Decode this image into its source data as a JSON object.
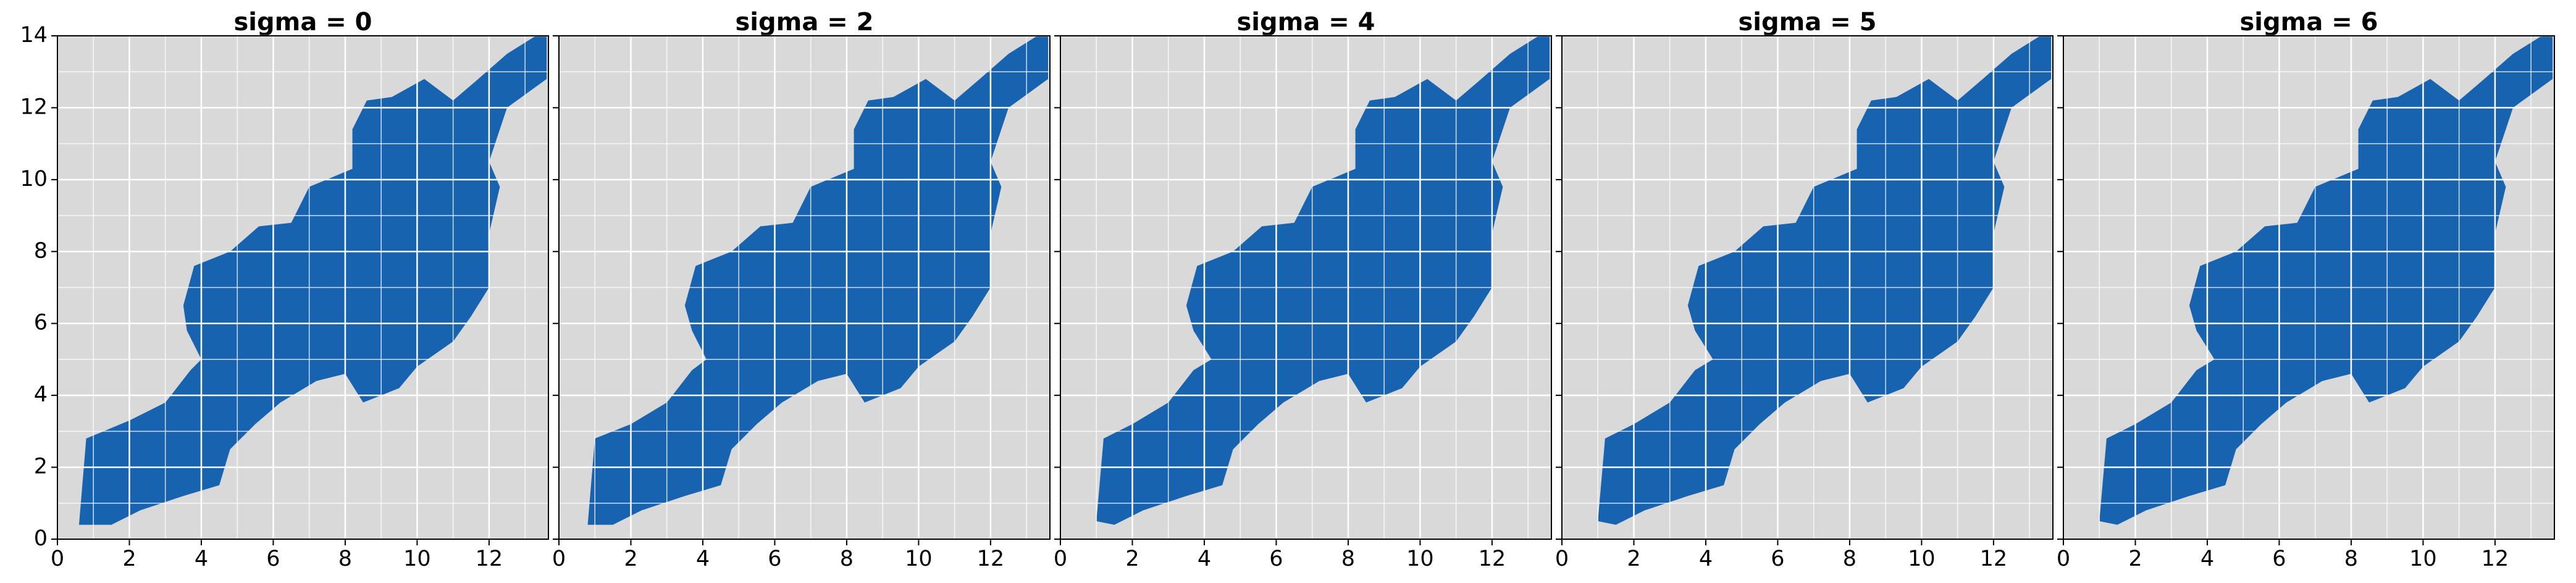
{
  "chart_data": [
    {
      "type": "mask",
      "title": "sigma = 0",
      "color": "#1763b0",
      "background": "#d9d9d9",
      "grid": true,
      "ytick_labels": true,
      "xlim": [
        0,
        13.65
      ],
      "ylim": [
        0,
        14
      ],
      "xticks": [
        0,
        2,
        4,
        6,
        8,
        10,
        12
      ],
      "yticks": [
        0,
        2,
        4,
        6,
        8,
        10,
        12,
        14
      ],
      "xminorticks": [
        1,
        3,
        5,
        7,
        9,
        11,
        13
      ],
      "yminorticks": [
        1,
        3,
        5,
        7,
        9,
        11,
        13
      ],
      "region": {
        "x": [
          0.6,
          0.8,
          2.0,
          3.0,
          3.7,
          4.0,
          3.6,
          3.5,
          3.8,
          4.8,
          5.6,
          6.5,
          7.0,
          8.2,
          8.2,
          8.6,
          9.3,
          10.2,
          11.0,
          11.7,
          12.5,
          13.3,
          13.6,
          13.6,
          12.5,
          12.0,
          12.3,
          12.0,
          12.0,
          11.5,
          11.0,
          10.0,
          9.5,
          8.5,
          8.0,
          7.2,
          6.2,
          5.5,
          4.8,
          4.5,
          3.5,
          2.3,
          1.5
        ],
        "y": [
          0.4,
          2.8,
          3.3,
          3.8,
          4.7,
          5.0,
          5.8,
          6.5,
          7.6,
          8.0,
          8.7,
          8.8,
          9.8,
          10.3,
          11.4,
          12.2,
          12.3,
          12.8,
          12.2,
          12.8,
          13.5,
          14.0,
          14.0,
          12.8,
          12.0,
          10.5,
          9.8,
          8.5,
          7.0,
          6.2,
          5.5,
          4.8,
          4.2,
          3.8,
          4.6,
          4.4,
          3.8,
          3.2,
          2.5,
          1.5,
          1.2,
          0.8,
          0.4
        ]
      }
    },
    {
      "type": "mask",
      "title": "sigma = 2",
      "color": "#1763b0",
      "background": "#d9d9d9",
      "grid": true,
      "ytick_labels": false,
      "xlim": [
        0,
        13.65
      ],
      "ylim": [
        0,
        14
      ],
      "xticks": [
        0,
        2,
        4,
        6,
        8,
        10,
        12
      ],
      "yticks": [
        0,
        2,
        4,
        6,
        8,
        10,
        12,
        14
      ],
      "xminorticks": [
        1,
        3,
        5,
        7,
        9,
        11,
        13
      ],
      "yminorticks": [
        1,
        3,
        5,
        7,
        9,
        11,
        13
      ],
      "region": {
        "x": [
          0.8,
          1.0,
          2.0,
          3.0,
          3.7,
          4.1,
          3.7,
          3.5,
          3.8,
          4.8,
          5.6,
          6.5,
          7.0,
          8.2,
          8.2,
          8.6,
          9.3,
          10.2,
          11.0,
          11.7,
          12.5,
          13.3,
          13.6,
          13.6,
          12.5,
          12.0,
          12.3,
          12.0,
          12.0,
          11.5,
          11.0,
          10.0,
          9.5,
          8.5,
          8.0,
          7.2,
          6.2,
          5.5,
          4.8,
          4.5,
          3.5,
          2.3,
          1.5
        ],
        "y": [
          0.4,
          2.8,
          3.2,
          3.8,
          4.7,
          5.0,
          5.8,
          6.5,
          7.6,
          8.0,
          8.7,
          8.8,
          9.8,
          10.3,
          11.4,
          12.2,
          12.3,
          12.8,
          12.2,
          12.8,
          13.5,
          14.0,
          14.0,
          12.8,
          12.0,
          10.5,
          9.8,
          8.5,
          7.0,
          6.2,
          5.5,
          4.8,
          4.2,
          3.8,
          4.6,
          4.4,
          3.8,
          3.2,
          2.5,
          1.5,
          1.2,
          0.8,
          0.4
        ]
      }
    },
    {
      "type": "mask",
      "title": "sigma = 4",
      "color": "#1763b0",
      "background": "#d9d9d9",
      "grid": true,
      "ytick_labels": false,
      "xlim": [
        0,
        13.65
      ],
      "ylim": [
        0,
        14
      ],
      "xticks": [
        0,
        2,
        4,
        6,
        8,
        10,
        12
      ],
      "yticks": [
        0,
        2,
        4,
        6,
        8,
        10,
        12,
        14
      ],
      "xminorticks": [
        1,
        3,
        5,
        7,
        9,
        11,
        13
      ],
      "yminorticks": [
        1,
        3,
        5,
        7,
        9,
        11,
        13
      ],
      "region": {
        "x": [
          1.0,
          1.2,
          2.0,
          3.0,
          3.7,
          4.2,
          3.7,
          3.5,
          3.8,
          4.8,
          5.6,
          6.5,
          7.0,
          8.2,
          8.2,
          8.6,
          9.3,
          10.2,
          11.0,
          11.7,
          12.5,
          13.3,
          13.6,
          13.6,
          12.5,
          12.0,
          12.3,
          12.0,
          12.0,
          11.5,
          11.0,
          10.0,
          9.5,
          8.5,
          8.0,
          7.2,
          6.2,
          5.5,
          4.8,
          4.5,
          3.5,
          2.3,
          1.5
        ],
        "y": [
          0.5,
          2.8,
          3.2,
          3.8,
          4.7,
          5.0,
          5.8,
          6.5,
          7.6,
          8.0,
          8.7,
          8.8,
          9.8,
          10.3,
          11.4,
          12.2,
          12.3,
          12.8,
          12.2,
          12.8,
          13.5,
          14.0,
          14.0,
          12.8,
          12.0,
          10.5,
          9.8,
          8.5,
          7.0,
          6.2,
          5.5,
          4.8,
          4.2,
          3.8,
          4.6,
          4.4,
          3.8,
          3.2,
          2.5,
          1.5,
          1.2,
          0.8,
          0.4
        ]
      }
    },
    {
      "type": "mask",
      "title": "sigma = 5",
      "color": "#1763b0",
      "background": "#d9d9d9",
      "grid": true,
      "ytick_labels": false,
      "xlim": [
        0,
        13.65
      ],
      "ylim": [
        0,
        14
      ],
      "xticks": [
        0,
        2,
        4,
        6,
        8,
        10,
        12
      ],
      "yticks": [
        0,
        2,
        4,
        6,
        8,
        10,
        12,
        14
      ],
      "xminorticks": [
        1,
        3,
        5,
        7,
        9,
        11,
        13
      ],
      "yminorticks": [
        1,
        3,
        5,
        7,
        9,
        11,
        13
      ],
      "region": {
        "x": [
          1.0,
          1.2,
          2.0,
          3.0,
          3.7,
          4.2,
          3.7,
          3.5,
          3.8,
          4.8,
          5.6,
          6.5,
          7.0,
          8.2,
          8.2,
          8.6,
          9.3,
          10.2,
          11.0,
          11.7,
          12.5,
          13.3,
          13.6,
          13.6,
          12.5,
          12.0,
          12.3,
          12.0,
          12.0,
          11.5,
          11.0,
          10.0,
          9.5,
          8.5,
          8.0,
          7.2,
          6.2,
          5.5,
          4.8,
          4.5,
          3.5,
          2.3,
          1.5
        ],
        "y": [
          0.5,
          2.8,
          3.2,
          3.8,
          4.7,
          5.0,
          5.8,
          6.5,
          7.6,
          8.0,
          8.7,
          8.8,
          9.8,
          10.3,
          11.4,
          12.2,
          12.3,
          12.8,
          12.2,
          12.8,
          13.5,
          14.0,
          14.0,
          12.8,
          12.0,
          10.5,
          9.8,
          8.5,
          7.0,
          6.2,
          5.5,
          4.8,
          4.2,
          3.8,
          4.6,
          4.4,
          3.8,
          3.2,
          2.5,
          1.5,
          1.2,
          0.8,
          0.4
        ]
      }
    },
    {
      "type": "mask",
      "title": "sigma = 6",
      "color": "#1763b0",
      "background": "#d9d9d9",
      "grid": true,
      "ytick_labels": false,
      "xlim": [
        0,
        13.65
      ],
      "ylim": [
        0,
        14
      ],
      "xticks": [
        0,
        2,
        4,
        6,
        8,
        10,
        12
      ],
      "yticks": [
        0,
        2,
        4,
        6,
        8,
        10,
        12,
        14
      ],
      "xminorticks": [
        1,
        3,
        5,
        7,
        9,
        11,
        13
      ],
      "yminorticks": [
        1,
        3,
        5,
        7,
        9,
        11,
        13
      ],
      "region": {
        "x": [
          1.0,
          1.2,
          2.0,
          3.0,
          3.7,
          4.2,
          3.7,
          3.5,
          3.8,
          4.8,
          5.6,
          6.5,
          7.0,
          8.2,
          8.2,
          8.6,
          9.3,
          10.2,
          11.0,
          11.7,
          12.5,
          13.3,
          13.6,
          13.6,
          12.5,
          12.0,
          12.3,
          12.0,
          12.0,
          11.5,
          11.0,
          10.0,
          9.5,
          8.5,
          8.0,
          7.2,
          6.2,
          5.5,
          4.8,
          4.5,
          3.5,
          2.3,
          1.5
        ],
        "y": [
          0.5,
          2.8,
          3.2,
          3.8,
          4.7,
          5.0,
          5.8,
          6.5,
          7.6,
          8.0,
          8.7,
          8.8,
          9.8,
          10.3,
          11.4,
          12.2,
          12.3,
          12.8,
          12.2,
          12.8,
          13.5,
          14.0,
          14.0,
          12.8,
          12.0,
          10.5,
          9.8,
          8.5,
          7.0,
          6.2,
          5.5,
          4.8,
          4.2,
          3.8,
          4.6,
          4.4,
          3.8,
          3.2,
          2.5,
          1.5,
          1.2,
          0.8,
          0.4
        ]
      }
    }
  ]
}
